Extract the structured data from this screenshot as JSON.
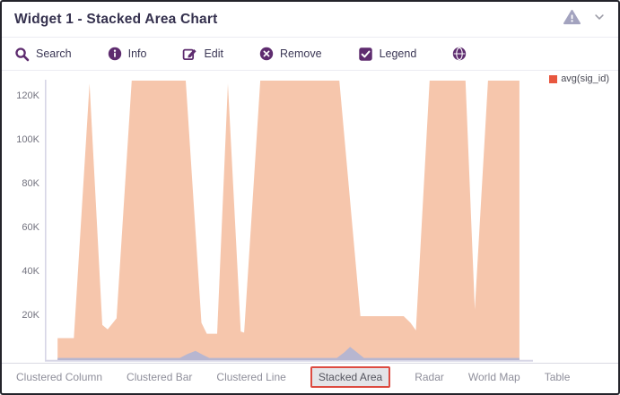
{
  "header": {
    "title": "Widget 1 - Stacked Area Chart",
    "warning_icon": "warning-triangle",
    "collapse_icon": "chevron-down"
  },
  "toolbar": {
    "items": [
      {
        "label": "Search",
        "icon": "magnifier"
      },
      {
        "label": "Info",
        "icon": "info-circle"
      },
      {
        "label": "Edit",
        "icon": "pencil-square"
      },
      {
        "label": "Remove",
        "icon": "x-circle"
      },
      {
        "label": "Legend",
        "icon": "checkbox-checked",
        "checked": true
      },
      {
        "label": "",
        "icon": "globe"
      }
    ]
  },
  "legend": {
    "label": "avg(sig_id)",
    "swatch_color": "#E8573F"
  },
  "chart_data": {
    "type": "area",
    "stacked": true,
    "title": "Widget 1 - Stacked Area Chart",
    "xlabel": "",
    "ylabel": "",
    "grid": false,
    "legend_position": "top-right",
    "x_axis": {
      "tick_labels_visible": false
    },
    "y_axis": {
      "ticks": [
        "20K",
        "40K",
        "60K",
        "80K",
        "100K",
        "120K"
      ],
      "tick_values_k": [
        20,
        40,
        60,
        80,
        100,
        120
      ],
      "range_k": [
        0,
        128
      ]
    },
    "axis_color": "#D7D6E6",
    "series": [
      {
        "name": "avg(sig_id)",
        "fill_color": "#F6C6AC",
        "legend_swatch_color": "#E8573F",
        "points_pct_x_value_k": [
          [
            2.6,
            10
          ],
          [
            5.9,
            10
          ],
          [
            9.1,
            126
          ],
          [
            11.7,
            16
          ],
          [
            12.8,
            14
          ],
          [
            14.6,
            19
          ],
          [
            17.7,
            128
          ],
          [
            28.7,
            128
          ],
          [
            31.9,
            17
          ],
          [
            33.0,
            12
          ],
          [
            35.1,
            12
          ],
          [
            37.3,
            126
          ],
          [
            39.9,
            13
          ],
          [
            40.6,
            12.5
          ],
          [
            43.9,
            128
          ],
          [
            60.0,
            128
          ],
          [
            64.3,
            20
          ],
          [
            73.1,
            20
          ],
          [
            74.5,
            17
          ],
          [
            75.6,
            13.5
          ],
          [
            78.4,
            128
          ],
          [
            85.7,
            128
          ],
          [
            87.6,
            23
          ],
          [
            90.3,
            128
          ],
          [
            96.7,
            128
          ]
        ]
      },
      {
        "name": "unlabeled-low-series",
        "fill_color": "#B7B6D0",
        "points_pct_x_value_k": [
          [
            2.6,
            1
          ],
          [
            27.5,
            1
          ],
          [
            29.1,
            2.8
          ],
          [
            30.7,
            4.2
          ],
          [
            32.1,
            2.5
          ],
          [
            33.5,
            1
          ],
          [
            59.5,
            1
          ],
          [
            61.0,
            3.5
          ],
          [
            62.2,
            6
          ],
          [
            63.6,
            3.5
          ],
          [
            65.0,
            1
          ],
          [
            96.7,
            1
          ]
        ]
      }
    ]
  },
  "footer": {
    "tabs": [
      "Clustered Column",
      "Clustered Bar",
      "Clustered Line",
      "Stacked Area",
      "Radar",
      "World Map",
      "Table"
    ],
    "selected_tab": "Stacked Area",
    "selected_border_color": "#DD4B41"
  }
}
